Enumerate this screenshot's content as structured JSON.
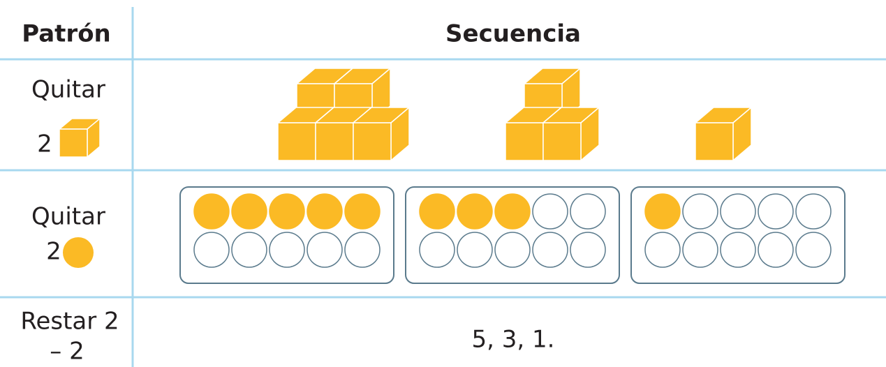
{
  "table": {
    "header": {
      "pattern": "Patrón",
      "sequence": "Secuencia"
    },
    "rows": [
      {
        "pattern": [
          "Quitar",
          "2"
        ]
      },
      {
        "pattern": [
          "Quitar",
          "2"
        ]
      },
      {
        "pattern": [
          "Restar 2",
          "– 2"
        ],
        "sequence": "5, 3, 1."
      }
    ]
  }
}
